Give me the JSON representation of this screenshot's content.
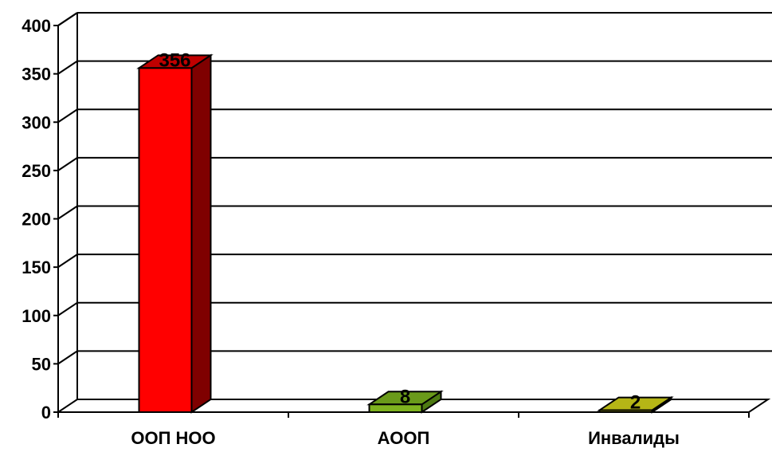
{
  "chart_data": {
    "type": "bar",
    "categories": [
      "ООП НОО",
      "АООП",
      "Инвалиды"
    ],
    "values": [
      356,
      8,
      2
    ],
    "data_labels": [
      "356",
      "8",
      "2"
    ],
    "ylim": [
      0,
      400
    ],
    "y_ticks": [
      "0",
      "50",
      "100",
      "150",
      "200",
      "250",
      "300",
      "350",
      "400"
    ],
    "title": "",
    "xlabel": "",
    "ylabel": "",
    "grid": true,
    "legend": "none",
    "style": "3d",
    "colors": {
      "bars": [
        {
          "front": "#ff0000",
          "side": "#7f0000",
          "top": "#c00000"
        },
        {
          "front": "#7fb31f",
          "side": "#4d7a12",
          "top": "#6a9a1a"
        },
        {
          "front": "#cccc1a",
          "side": "#8a8a10",
          "top": "#b5b516"
        }
      ]
    }
  }
}
